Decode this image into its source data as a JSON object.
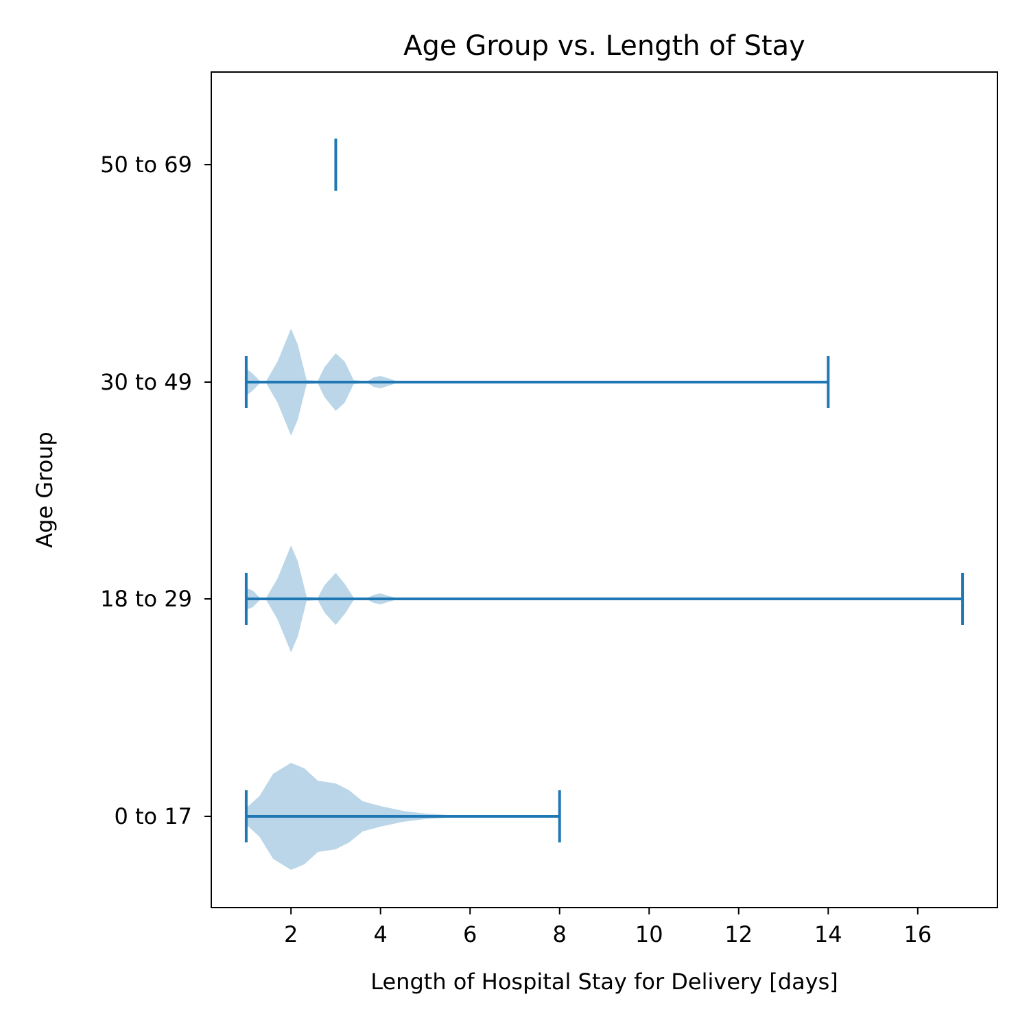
{
  "chart_data": {
    "type": "violin",
    "orientation": "horizontal",
    "title": "Age Group vs. Length of Stay",
    "xlabel": "Length of Hospital Stay for Delivery [days]",
    "ylabel": "Age Group",
    "xlim": [
      0.22,
      17.78
    ],
    "xticks": [
      2,
      4,
      6,
      8,
      10,
      12,
      14,
      16
    ],
    "xtick_labels": [
      "2",
      "4",
      "6",
      "8",
      "10",
      "12",
      "14",
      "16"
    ],
    "categories": [
      "0 to 17",
      "18 to 29",
      "30 to 49",
      "50 to 69"
    ],
    "grid": false,
    "color": "#1f77b4",
    "fill_opacity": 0.3,
    "violins": [
      {
        "category": "0 to 17",
        "min": 1,
        "max": 8,
        "density": [
          [
            1,
            0.12
          ],
          [
            1.3,
            0.3
          ],
          [
            1.6,
            0.62
          ],
          [
            2,
            0.78
          ],
          [
            2.3,
            0.7
          ],
          [
            2.6,
            0.52
          ],
          [
            3,
            0.48
          ],
          [
            3.3,
            0.38
          ],
          [
            3.6,
            0.22
          ],
          [
            4,
            0.15
          ],
          [
            4.5,
            0.08
          ],
          [
            5,
            0.04
          ],
          [
            5.5,
            0.02
          ],
          [
            6,
            0.01
          ],
          [
            7,
            0.005
          ],
          [
            8,
            0.003
          ]
        ]
      },
      {
        "category": "18 to 29",
        "min": 1,
        "max": 17,
        "density": [
          [
            1,
            0.16
          ],
          [
            1.15,
            0.12
          ],
          [
            1.3,
            0.02
          ],
          [
            1.45,
            0.02
          ],
          [
            1.7,
            0.3
          ],
          [
            2,
            0.78
          ],
          [
            2.15,
            0.55
          ],
          [
            2.35,
            0.03
          ],
          [
            2.6,
            0.02
          ],
          [
            2.75,
            0.2
          ],
          [
            3,
            0.38
          ],
          [
            3.2,
            0.22
          ],
          [
            3.4,
            0.02
          ],
          [
            3.7,
            0.01
          ],
          [
            3.85,
            0.06
          ],
          [
            4,
            0.08
          ],
          [
            4.2,
            0.04
          ],
          [
            4.4,
            0.005
          ],
          [
            17,
            0.001
          ]
        ]
      },
      {
        "category": "30 to 49",
        "min": 1,
        "max": 14,
        "density": [
          [
            1,
            0.2
          ],
          [
            1.15,
            0.12
          ],
          [
            1.3,
            0.02
          ],
          [
            1.45,
            0.02
          ],
          [
            1.7,
            0.3
          ],
          [
            2,
            0.78
          ],
          [
            2.15,
            0.55
          ],
          [
            2.35,
            0.03
          ],
          [
            2.6,
            0.02
          ],
          [
            2.75,
            0.22
          ],
          [
            3,
            0.42
          ],
          [
            3.2,
            0.3
          ],
          [
            3.4,
            0.03
          ],
          [
            3.7,
            0.01
          ],
          [
            3.85,
            0.07
          ],
          [
            4,
            0.09
          ],
          [
            4.2,
            0.05
          ],
          [
            4.4,
            0.005
          ],
          [
            14,
            0.001
          ]
        ]
      },
      {
        "category": "50 to 69",
        "min": 3,
        "max": 3,
        "density": []
      }
    ]
  }
}
